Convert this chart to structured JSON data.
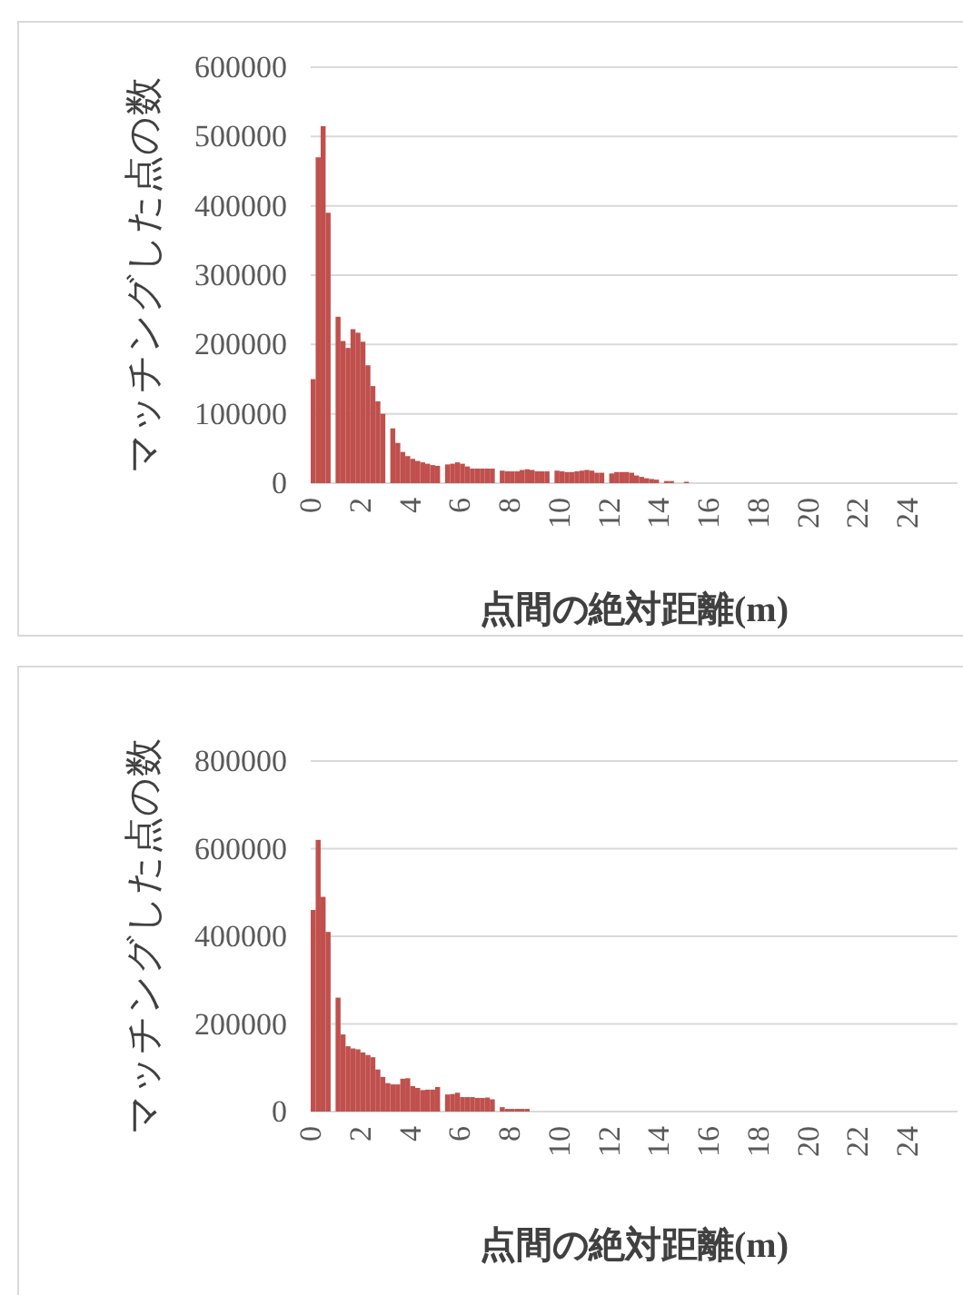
{
  "chart_data": [
    {
      "type": "histogram",
      "ylabel": "マッチングした点の数",
      "xlabel": "点間の絶対距離(m)",
      "color": "#c0504d",
      "grid": "y",
      "bins": [
        0,
        0.2,
        0.4,
        0.6,
        0.8,
        1,
        1.2,
        1.4,
        1.6,
        1.8,
        2,
        2.2,
        2.4,
        2.6,
        2.8,
        3,
        3.2,
        3.4,
        3.6,
        3.8,
        4,
        4.2,
        4.4,
        4.6,
        4.8,
        5,
        5.2,
        5.4,
        5.6,
        5.8,
        6,
        6.2,
        6.4,
        6.6,
        6.8,
        7,
        7.2,
        7.4,
        7.6,
        7.8,
        8,
        8.2,
        8.4,
        8.6,
        8.8,
        9,
        9.2,
        9.4,
        9.6,
        9.8,
        10,
        10.2,
        10.4,
        10.6,
        10.8,
        11,
        11.2,
        11.4,
        11.6,
        11.8,
        12,
        12.2,
        12.4,
        12.6,
        12.8,
        13,
        13.2,
        13.4,
        13.6,
        13.8,
        14,
        14.2,
        14.4,
        14.6,
        14.8,
        15,
        15.2
      ],
      "values": [
        150000,
        470000,
        515000,
        390000,
        0,
        240000,
        205000,
        195000,
        222000,
        217000,
        204000,
        170000,
        140000,
        118000,
        100000,
        0,
        79000,
        58000,
        45000,
        39000,
        35000,
        32000,
        30000,
        28000,
        26000,
        25000,
        0,
        27000,
        28000,
        30000,
        28000,
        24000,
        21000,
        21000,
        21000,
        21000,
        21000,
        0,
        18000,
        17000,
        17000,
        17000,
        19000,
        20000,
        19000,
        17000,
        17000,
        17000,
        0,
        18000,
        17000,
        16000,
        16000,
        17000,
        18000,
        19000,
        18000,
        15000,
        15000,
        0,
        14000,
        16000,
        16000,
        16000,
        15000,
        11000,
        9000,
        7000,
        6000,
        5000,
        0,
        3000,
        3000,
        0,
        0,
        2000
      ],
      "xlim": [
        0,
        26
      ],
      "xticks": [
        0,
        2,
        4,
        6,
        8,
        10,
        12,
        14,
        16,
        18,
        20,
        22,
        24
      ],
      "ylim": [
        0,
        600000
      ],
      "yticks": [
        0,
        100000,
        200000,
        300000,
        400000,
        500000,
        600000
      ]
    },
    {
      "type": "histogram",
      "ylabel": "マッチングした点の数",
      "xlabel": "点間の絶対距離(m)",
      "color": "#c0504d",
      "grid": "y",
      "bins": [
        0,
        0.2,
        0.4,
        0.6,
        0.8,
        1,
        1.2,
        1.4,
        1.6,
        1.8,
        2,
        2.2,
        2.4,
        2.6,
        2.8,
        3,
        3.2,
        3.4,
        3.6,
        3.8,
        4,
        4.2,
        4.4,
        4.6,
        4.8,
        5,
        5.2,
        5.4,
        5.6,
        5.8,
        6,
        6.2,
        6.4,
        6.6,
        6.8,
        7,
        7.2,
        7.4,
        7.6,
        7.8,
        8,
        8.2,
        8.4,
        8.6,
        8.8
      ],
      "values": [
        460000,
        620000,
        490000,
        410000,
        0,
        260000,
        176000,
        149000,
        144000,
        142000,
        135000,
        129000,
        124000,
        96000,
        79000,
        65000,
        62000,
        62000,
        75000,
        76000,
        58000,
        54000,
        49000,
        50000,
        50000,
        56000,
        0,
        39000,
        40000,
        43000,
        33000,
        33000,
        33000,
        31000,
        31000,
        32000,
        28000,
        0,
        10000,
        6000,
        6000,
        6000,
        6000,
        6000
      ],
      "xlim": [
        0,
        26
      ],
      "xticks": [
        0,
        2,
        4,
        6,
        8,
        10,
        12,
        14,
        16,
        18,
        20,
        22,
        24
      ],
      "ylim": [
        0,
        800000
      ],
      "yticks": [
        0,
        200000,
        400000,
        600000,
        800000
      ]
    }
  ]
}
